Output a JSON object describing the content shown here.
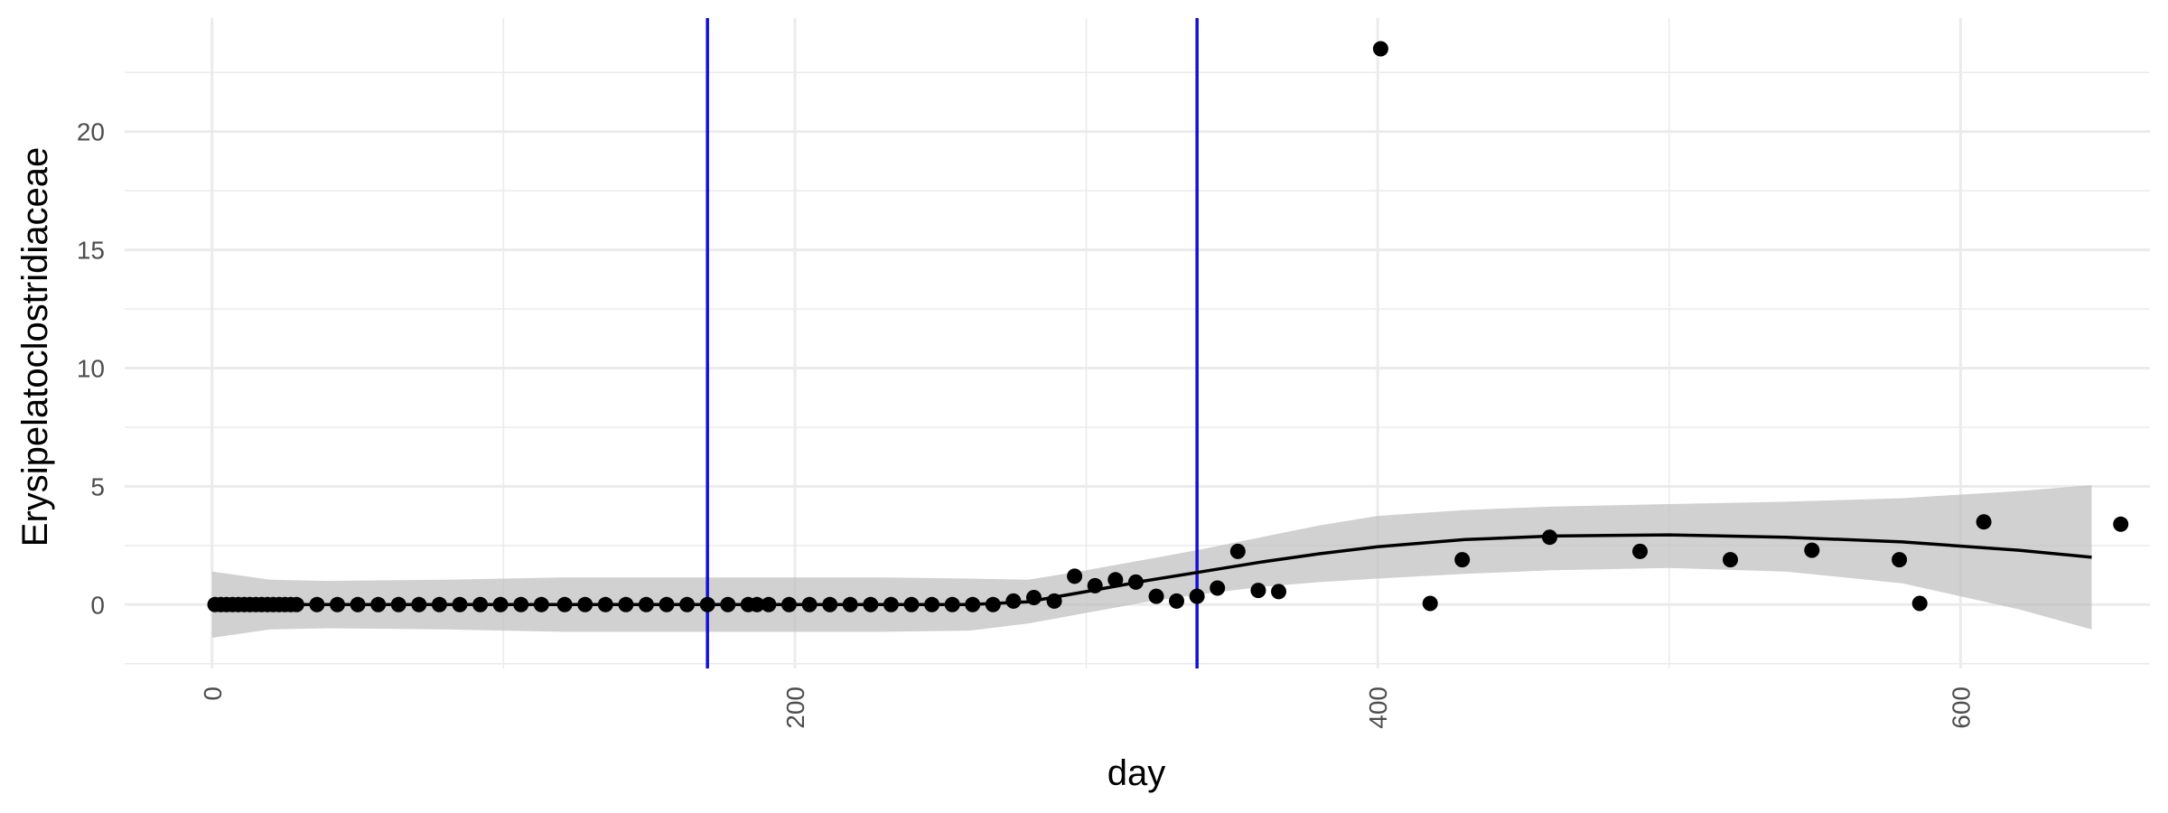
{
  "chart_data": {
    "type": "scatter",
    "xlabel": "day",
    "ylabel": "Erysipelatoclostridiaceae",
    "xlim": [
      -30,
      665
    ],
    "ylim": [
      -2.7,
      24.8
    ],
    "x_ticks": [
      0,
      200,
      400,
      600
    ],
    "x_tick_labels": [
      "0",
      "200",
      "400",
      "600"
    ],
    "y_ticks": [
      0,
      5,
      10,
      15,
      20
    ],
    "y_tick_labels": [
      "0",
      "5",
      "10",
      "15",
      "20"
    ],
    "grid": true,
    "legend": "none",
    "vlines": [
      170,
      338
    ],
    "points": {
      "x": [
        1,
        3,
        5,
        7,
        9,
        11,
        13,
        15,
        17,
        19,
        21,
        23,
        25,
        27,
        29,
        36,
        43,
        50,
        57,
        64,
        71,
        78,
        85,
        92,
        99,
        106,
        113,
        121,
        128,
        135,
        142,
        149,
        156,
        163,
        170,
        177,
        184,
        187,
        191,
        198,
        205,
        212,
        219,
        226,
        233,
        240,
        247,
        254,
        261,
        268,
        275,
        282,
        289,
        296,
        303,
        310,
        317,
        324,
        331,
        338,
        345,
        352,
        359,
        366,
        401,
        418,
        429,
        459,
        490,
        521,
        549,
        579,
        586,
        608,
        655
      ],
      "y": [
        0,
        0,
        0,
        0,
        0,
        0,
        0,
        0,
        0,
        0,
        0,
        0,
        0,
        0,
        0,
        0,
        0,
        0,
        0,
        0,
        0,
        0,
        0,
        0,
        0,
        0,
        0,
        0,
        0,
        0,
        0,
        0,
        0,
        0,
        0,
        0,
        0,
        0,
        0,
        0,
        0,
        0,
        0,
        0,
        0,
        0,
        0,
        0,
        0,
        0,
        0.15,
        0.3,
        0.15,
        1.2,
        0.8,
        1.05,
        0.95,
        0.35,
        0.15,
        0.35,
        0.7,
        2.25,
        0.6,
        0.55,
        23.5,
        0.05,
        1.9,
        2.85,
        2.25,
        1.9,
        2.3,
        1.9,
        0.05,
        3.5,
        3.4
      ]
    },
    "smooth": {
      "x": [
        0,
        40,
        80,
        120,
        160,
        200,
        230,
        260,
        280,
        300,
        320,
        340,
        360,
        380,
        400,
        430,
        460,
        500,
        540,
        580,
        620,
        645
      ],
      "y": [
        0,
        0,
        0,
        0,
        0,
        0,
        0,
        0,
        0.12,
        0.55,
        1.0,
        1.4,
        1.8,
        2.15,
        2.45,
        2.75,
        2.9,
        2.95,
        2.85,
        2.65,
        2.3,
        2.0
      ]
    },
    "ribbon": {
      "x": [
        0,
        20,
        40,
        80,
        120,
        160,
        200,
        230,
        260,
        280,
        300,
        320,
        340,
        360,
        380,
        400,
        430,
        460,
        500,
        540,
        580,
        620,
        645
      ],
      "lower": [
        -1.4,
        -1.05,
        -1.0,
        -1.05,
        -1.15,
        -1.15,
        -1.15,
        -1.15,
        -1.1,
        -0.8,
        -0.35,
        0.1,
        0.45,
        0.75,
        0.95,
        1.1,
        1.3,
        1.45,
        1.55,
        1.4,
        0.9,
        -0.2,
        -1.05
      ],
      "upper": [
        1.4,
        1.05,
        1.0,
        1.05,
        1.15,
        1.15,
        1.15,
        1.15,
        1.1,
        1.05,
        1.45,
        1.9,
        2.35,
        2.85,
        3.35,
        3.75,
        4.0,
        4.15,
        4.25,
        4.35,
        4.5,
        4.8,
        5.05
      ]
    },
    "colors": {
      "point": "#000000",
      "smooth": "#000000",
      "ribbon": "#bdbdbd",
      "vline": "#1010d8",
      "grid": "#ebebeb"
    }
  }
}
